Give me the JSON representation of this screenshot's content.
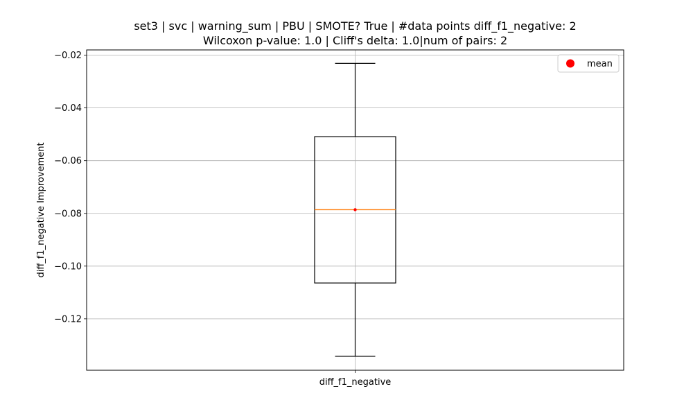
{
  "chart_data": {
    "type": "box",
    "title_line1": "set3 | svc | warning_sum | PBU | SMOTE? True | #data points diff_f1_negative: 2",
    "title_line2": "Wilcoxon p-value: 1.0 | Cliff's delta: 1.0|num of pairs: 2",
    "xlabel": "",
    "ylabel": "diff_f1_negative Improvement",
    "categories": [
      "diff_f1_negative"
    ],
    "ylim": [
      -0.1395,
      -0.018
    ],
    "yticks": [
      -0.02,
      -0.04,
      -0.06,
      -0.08,
      -0.1,
      -0.12
    ],
    "ytick_labels": [
      "−0.02",
      "−0.04",
      "−0.06",
      "−0.08",
      "−0.10",
      "−0.12"
    ],
    "grid": true,
    "legend": {
      "position": "top-right",
      "entries": [
        "mean"
      ]
    },
    "box": {
      "whisker_low": -0.1342,
      "q1": -0.1064,
      "median": -0.0786,
      "q3": -0.0509,
      "whisker_high": -0.0231,
      "mean": -0.0786
    },
    "colors": {
      "box": "#000000",
      "median": "#ff7f0e",
      "mean": "#ff0000",
      "grid": "#b0b0b0"
    }
  }
}
